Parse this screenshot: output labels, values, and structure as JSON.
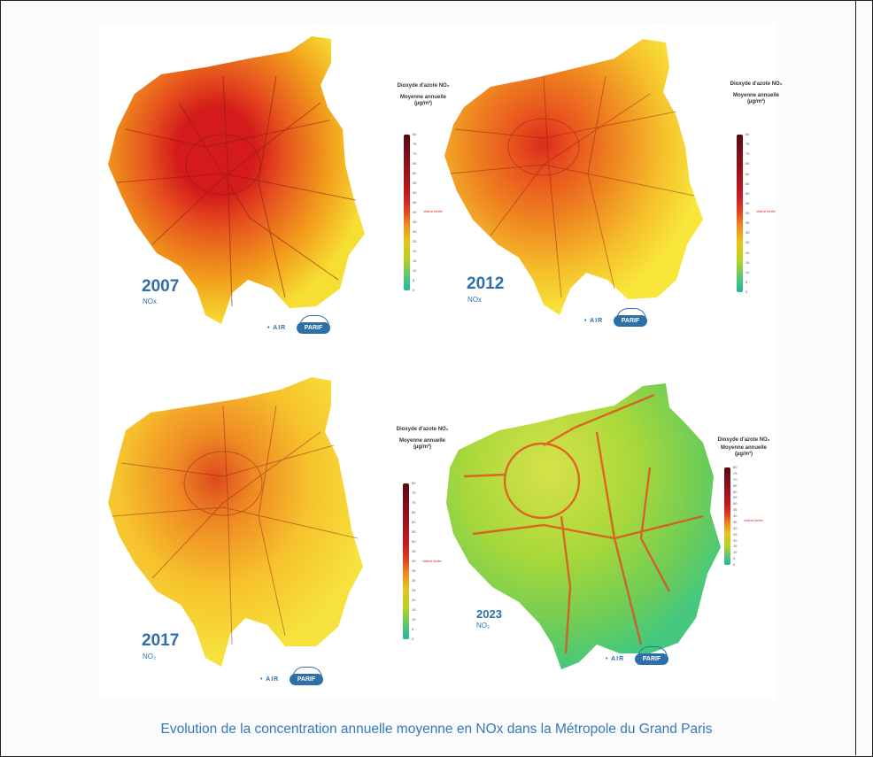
{
  "caption": "Evolution de la concentration annuelle moyenne en NOx dans la Métropole du Grand Paris",
  "logo": {
    "prefix": "• AIR",
    "pill": "PARIF"
  },
  "legend": {
    "title": "Dioxyde d'azote NO₂",
    "subtitle": "Moyenne annuelle (µg/m³)",
    "limit": "Valeur limite",
    "ticks": [
      "80",
      "75",
      "70",
      "65",
      "60",
      "55",
      "50",
      "45",
      "40",
      "35",
      "30",
      "25",
      "20",
      "15",
      "10",
      "5",
      "0"
    ]
  },
  "maps": [
    {
      "year": "2007",
      "pollutant": "NOx",
      "colors": {
        "outer": "#f2a01c",
        "inner": "#e6531e",
        "core": "#d41a1a",
        "edge": "#f6df33"
      }
    },
    {
      "year": "2012",
      "pollutant": "NOx",
      "colors": {
        "outer": "#f5c02b",
        "inner": "#ee8420",
        "core": "#db2c1c",
        "edge": "#f8e63a"
      }
    },
    {
      "year": "2017",
      "pollutant": "NO₂",
      "colors": {
        "outer": "#f6c22c",
        "inner": "#ef8a24",
        "core": "#dc4a1d",
        "edge": "#f6e23c"
      }
    },
    {
      "year": "2023",
      "pollutant": "NO₂",
      "colors": {
        "outer": "#a8d83a",
        "inner": "#d7e24a",
        "core": "#e8b02a",
        "edge": "#45c87e"
      }
    }
  ]
}
